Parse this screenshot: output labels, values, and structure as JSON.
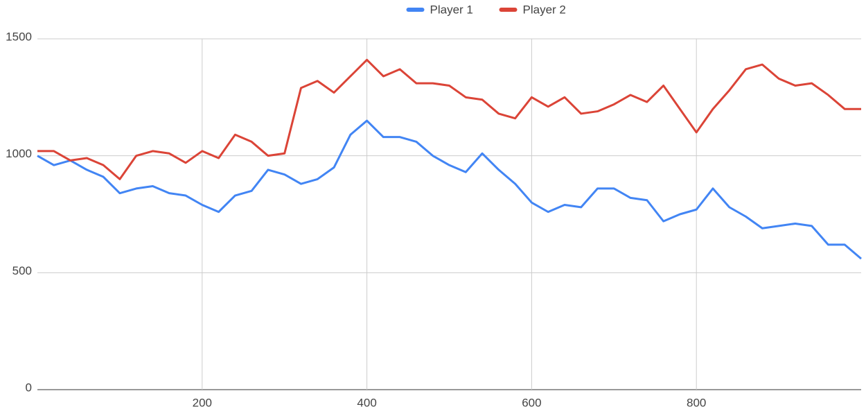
{
  "chart_data": {
    "type": "line",
    "x": [
      0,
      20,
      40,
      60,
      80,
      100,
      120,
      140,
      160,
      180,
      200,
      220,
      240,
      260,
      280,
      300,
      320,
      340,
      360,
      380,
      400,
      420,
      440,
      460,
      480,
      500,
      520,
      540,
      560,
      580,
      600,
      620,
      640,
      660,
      680,
      700,
      720,
      740,
      760,
      780,
      800,
      820,
      840,
      860,
      880,
      900,
      920,
      940,
      960,
      980,
      1000
    ],
    "series": [
      {
        "name": "Player 1",
        "color": "#4285f4",
        "values": [
          1000,
          960,
          980,
          940,
          910,
          840,
          860,
          870,
          840,
          830,
          790,
          760,
          830,
          850,
          940,
          920,
          880,
          900,
          950,
          1090,
          1150,
          1080,
          1080,
          1060,
          1000,
          960,
          930,
          1010,
          940,
          880,
          800,
          760,
          790,
          780,
          860,
          860,
          820,
          810,
          720,
          750,
          770,
          860,
          780,
          740,
          690,
          700,
          710,
          700,
          620,
          620,
          560
        ]
      },
      {
        "name": "Player 2",
        "color": "#db4437",
        "values": [
          1020,
          1020,
          980,
          990,
          960,
          900,
          1000,
          1020,
          1010,
          970,
          1020,
          990,
          1090,
          1060,
          1000,
          1010,
          1290,
          1320,
          1270,
          1340,
          1410,
          1340,
          1370,
          1310,
          1310,
          1300,
          1250,
          1240,
          1180,
          1160,
          1250,
          1210,
          1250,
          1180,
          1190,
          1220,
          1260,
          1230,
          1300,
          1200,
          1100,
          1200,
          1280,
          1370,
          1390,
          1330,
          1300,
          1310,
          1260,
          1200,
          1200
        ]
      }
    ],
    "xlim": [
      0,
      1000
    ],
    "ylim": [
      0,
      1500
    ],
    "xticks": [
      200,
      400,
      600,
      800
    ],
    "yticks": [
      0,
      500,
      1000,
      1500
    ],
    "grid": true,
    "legend": "top"
  }
}
